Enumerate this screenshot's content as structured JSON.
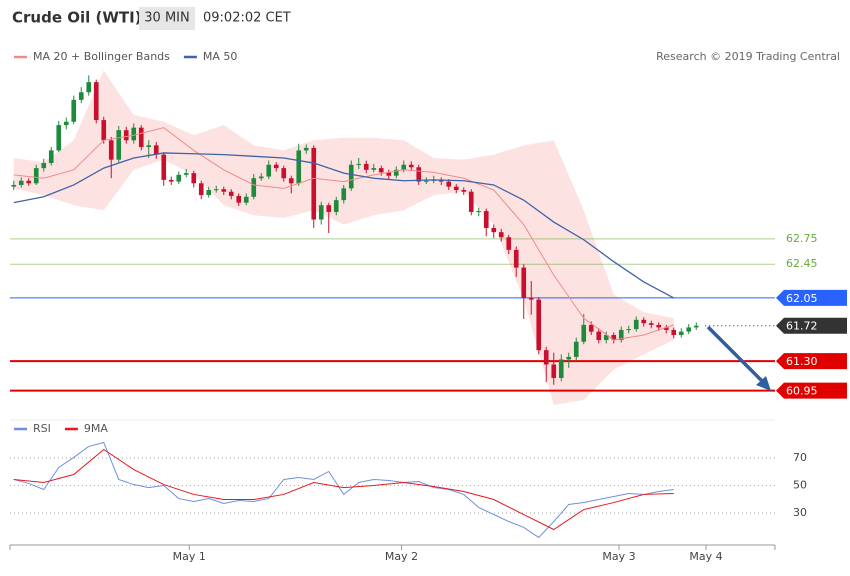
{
  "header": {
    "title": "Crude Oil (WTI)",
    "interval": "30 MIN",
    "time": "09:02:02 CET"
  },
  "credit": "Research © 2019 Trading Central",
  "chart_data": [
    {
      "type": "candlestick",
      "xlim": [
        -0.5,
        101.5
      ],
      "ylim": [
        60.72,
        65.11
      ],
      "up_color": "#1f8a3c",
      "down_color": "#c8102e",
      "open": [
        63.37,
        63.39,
        63.44,
        63.41,
        63.59,
        63.65,
        63.8,
        64.1,
        64.14,
        64.4,
        64.49,
        64.61,
        64.16,
        63.92,
        63.69,
        64.04,
        63.92,
        64.07,
        63.84,
        63.86,
        63.75,
        63.45,
        63.43,
        63.51,
        63.53,
        63.41,
        63.27,
        63.33,
        63.34,
        63.31,
        63.26,
        63.18,
        63.25,
        63.47,
        63.49,
        63.63,
        63.59,
        63.47,
        63.41,
        63.8,
        63.83,
        62.98,
        63.15,
        63.07,
        63.21,
        63.35,
        63.63,
        63.64,
        63.57,
        63.59,
        63.54,
        63.5,
        63.57,
        63.63,
        63.6,
        63.43,
        63.44,
        63.45,
        63.43,
        63.37,
        63.33,
        63.31,
        63.07,
        63.08,
        62.88,
        62.83,
        62.77,
        62.62,
        62.41,
        62.05,
        62.03,
        61.43,
        61.26,
        61.1,
        61.32,
        61.35,
        61.53,
        61.73,
        61.65,
        61.55,
        61.61,
        61.55,
        61.67,
        61.68,
        61.79,
        61.75,
        61.73,
        61.7,
        61.67,
        61.61,
        61.65,
        61.7
      ],
      "high": [
        63.44,
        63.48,
        63.47,
        63.63,
        63.7,
        63.84,
        64.15,
        64.19,
        64.45,
        64.55,
        64.69,
        64.64,
        64.2,
        63.96,
        64.09,
        64.08,
        64.12,
        64.1,
        63.92,
        63.9,
        63.78,
        63.49,
        63.55,
        63.58,
        63.56,
        63.44,
        63.37,
        63.38,
        63.37,
        63.34,
        63.29,
        63.29,
        63.52,
        63.53,
        63.68,
        63.66,
        63.62,
        63.5,
        63.88,
        63.87,
        63.86,
        63.19,
        63.18,
        63.25,
        63.39,
        63.68,
        63.71,
        63.68,
        63.64,
        63.62,
        63.57,
        63.61,
        63.68,
        63.67,
        63.63,
        63.48,
        63.5,
        63.48,
        63.46,
        63.4,
        63.36,
        63.34,
        63.12,
        63.11,
        62.92,
        62.87,
        62.8,
        62.66,
        62.45,
        62.25,
        62.06,
        61.47,
        61.4,
        61.38,
        61.4,
        61.58,
        61.86,
        61.77,
        61.69,
        61.65,
        61.64,
        61.71,
        61.72,
        61.83,
        61.82,
        61.78,
        61.76,
        61.73,
        61.7,
        61.69,
        61.74,
        61.76
      ],
      "low": [
        63.33,
        63.36,
        63.38,
        63.39,
        63.55,
        63.62,
        63.78,
        64.05,
        64.11,
        64.36,
        64.45,
        64.12,
        63.88,
        63.47,
        63.66,
        63.88,
        63.88,
        63.8,
        63.71,
        63.7,
        63.38,
        63.39,
        63.4,
        63.48,
        63.36,
        63.22,
        63.24,
        63.3,
        63.27,
        63.22,
        63.14,
        63.15,
        63.22,
        63.44,
        63.46,
        63.55,
        63.43,
        63.29,
        63.38,
        63.76,
        62.88,
        62.92,
        62.82,
        63.03,
        63.17,
        63.32,
        63.58,
        63.53,
        63.54,
        63.5,
        63.46,
        63.47,
        63.54,
        63.56,
        63.39,
        63.4,
        63.41,
        63.39,
        63.33,
        63.29,
        63.27,
        63.03,
        63.02,
        62.78,
        62.76,
        62.72,
        62.57,
        62.3,
        61.8,
        61.85,
        61.38,
        61.05,
        61.02,
        61.06,
        61.22,
        61.31,
        61.5,
        61.61,
        61.51,
        61.51,
        61.51,
        61.52,
        61.63,
        61.65,
        61.71,
        61.69,
        61.66,
        61.63,
        61.57,
        61.58,
        61.62,
        61.67
      ],
      "close": [
        63.39,
        63.44,
        63.41,
        63.59,
        63.65,
        63.8,
        64.1,
        64.14,
        64.4,
        64.49,
        64.61,
        64.16,
        63.92,
        63.69,
        64.04,
        63.92,
        64.07,
        63.84,
        63.86,
        63.75,
        63.45,
        63.43,
        63.51,
        63.53,
        63.41,
        63.27,
        63.33,
        63.34,
        63.31,
        63.26,
        63.18,
        63.25,
        63.47,
        63.49,
        63.63,
        63.59,
        63.47,
        63.41,
        63.8,
        63.83,
        62.98,
        63.15,
        63.07,
        63.21,
        63.35,
        63.63,
        63.64,
        63.57,
        63.59,
        63.54,
        63.5,
        63.57,
        63.63,
        63.6,
        63.43,
        63.44,
        63.45,
        63.43,
        63.37,
        63.33,
        63.31,
        63.07,
        63.08,
        62.88,
        62.83,
        62.77,
        62.62,
        62.41,
        62.05,
        62.03,
        61.43,
        61.26,
        61.1,
        61.32,
        61.35,
        61.53,
        61.73,
        61.65,
        61.55,
        61.61,
        61.55,
        61.67,
        61.68,
        61.79,
        61.75,
        61.73,
        61.7,
        61.67,
        61.61,
        61.65,
        61.7,
        61.72
      ],
      "series": [
        {
          "name": "MA 20 + Bollinger Bands",
          "color": "#f08a8a",
          "band_fill": "#fde2e2",
          "x": [
            0,
            4,
            8,
            12,
            16,
            20,
            24,
            28,
            32,
            36,
            40,
            44,
            48,
            52,
            56,
            60,
            64,
            68,
            72,
            76,
            80,
            84,
            88
          ],
          "values": [
            63.51,
            63.47,
            63.57,
            63.92,
            63.98,
            64.07,
            63.8,
            63.57,
            63.39,
            63.35,
            63.47,
            63.43,
            63.51,
            63.57,
            63.54,
            63.47,
            63.33,
            62.92,
            62.32,
            61.81,
            61.55,
            61.61,
            61.73
          ],
          "upper": [
            63.71,
            63.66,
            63.92,
            64.75,
            64.22,
            64.14,
            63.98,
            64.1,
            63.86,
            63.8,
            63.92,
            63.95,
            63.95,
            63.92,
            63.71,
            63.69,
            63.75,
            63.86,
            63.92,
            63.09,
            62.09,
            61.88,
            61.81
          ],
          "lower": [
            63.35,
            63.27,
            63.15,
            63.09,
            63.57,
            63.69,
            63.51,
            63.15,
            63.03,
            63.0,
            63.09,
            62.92,
            63.03,
            63.09,
            63.27,
            63.31,
            62.92,
            62.03,
            60.78,
            60.84,
            61.2,
            61.38,
            61.55
          ]
        },
        {
          "name": "MA 50",
          "color": "#3d63a8",
          "x": [
            0,
            4,
            8,
            12,
            16,
            20,
            24,
            28,
            32,
            36,
            40,
            44,
            48,
            52,
            56,
            60,
            64,
            68,
            72,
            76,
            80,
            84,
            88
          ],
          "values": [
            63.18,
            63.25,
            63.39,
            63.59,
            63.71,
            63.77,
            63.76,
            63.75,
            63.73,
            63.71,
            63.65,
            63.53,
            63.47,
            63.44,
            63.45,
            63.44,
            63.39,
            63.21,
            62.95,
            62.74,
            62.48,
            62.24,
            62.05
          ]
        }
      ],
      "levels": [
        {
          "value": 62.75,
          "color": "#6aaa3a"
        },
        {
          "value": 62.45,
          "color": "#6aaa3a"
        },
        {
          "value": 62.05,
          "color": "#2962ff",
          "tag": true
        },
        {
          "value": 61.72,
          "color": "#333333",
          "tag": true,
          "dotted": true
        },
        {
          "value": 61.3,
          "label": "61.30",
          "color": "#e00000",
          "tag": true
        },
        {
          "value": 60.95,
          "color": "#e00000",
          "tag": true
        }
      ]
    },
    {
      "type": "line",
      "xlim": [
        -0.5,
        101.5
      ],
      "ylim": [
        10,
        90
      ],
      "yticks": [
        70,
        50,
        30
      ],
      "grid": true,
      "xticks": [
        {
          "value": 23.4,
          "label": "May 1"
        },
        {
          "value": 51.7,
          "label": "May 2"
        },
        {
          "value": 80.7,
          "label": "May 3"
        },
        {
          "value": 92.3,
          "label": "May 4"
        }
      ],
      "series": [
        {
          "name": "RSI",
          "color": "#6f8fdf",
          "x": [
            0,
            2,
            4,
            6,
            8,
            10,
            12,
            14,
            16,
            18,
            20,
            22,
            24,
            26,
            28,
            30,
            32,
            34,
            36,
            38,
            40,
            42,
            44,
            46,
            48,
            50,
            52,
            54,
            56,
            58,
            60,
            62,
            64,
            66,
            68,
            70,
            72,
            74,
            76,
            78,
            80,
            82,
            84,
            86,
            88
          ],
          "values": [
            54.4,
            51.5,
            47.1,
            63.1,
            70.4,
            78.4,
            81.3,
            54.4,
            50.7,
            48.5,
            50.0,
            40.5,
            38.4,
            40.5,
            36.9,
            39.1,
            38.4,
            40.5,
            54.4,
            55.8,
            54.4,
            60.2,
            43.5,
            52.2,
            54.4,
            53.6,
            52.2,
            52.9,
            48.5,
            47.1,
            43.5,
            34.0,
            28.9,
            23.8,
            19.5,
            12.2,
            23.8,
            36.2,
            37.6,
            39.8,
            42.0,
            44.2,
            43.5,
            45.6,
            47.1
          ]
        },
        {
          "name": "9MA",
          "color": "#e8171c",
          "x": [
            0,
            4,
            8,
            12,
            16,
            20,
            24,
            28,
            32,
            36,
            40,
            44,
            48,
            52,
            56,
            60,
            64,
            68,
            72,
            76,
            80,
            84,
            88
          ],
          "values": [
            54.4,
            52.2,
            58.0,
            76.2,
            61.6,
            50.7,
            43.5,
            39.8,
            39.8,
            43.5,
            52.2,
            48.5,
            50.0,
            52.2,
            49.3,
            45.6,
            39.8,
            28.9,
            18.0,
            32.5,
            37.6,
            43.5,
            44.2
          ]
        }
      ]
    }
  ]
}
